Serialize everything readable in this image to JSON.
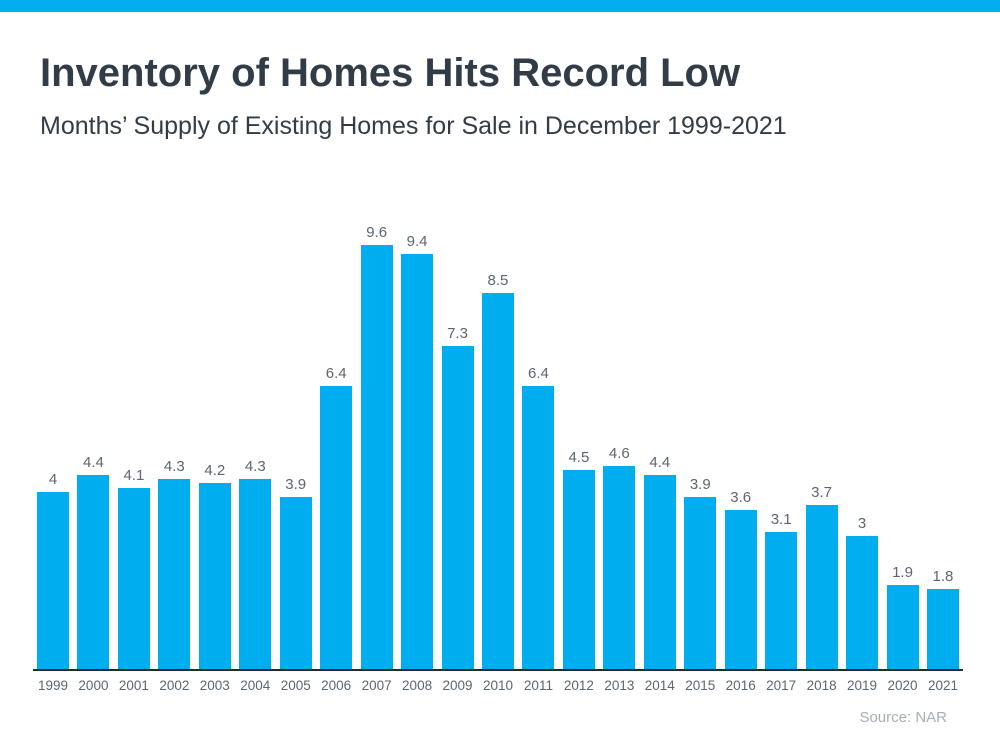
{
  "page": {
    "title": "Inventory of Homes Hits Record Low",
    "subtitle": "Months’ Supply of Existing Homes for Sale in December 1999-2021",
    "source": "Source: NAR"
  },
  "colors": {
    "accent_bar": "#00AEEF",
    "bar": "#00AEEF",
    "title_text": "#323C46",
    "label_text": "#5C6670",
    "axis_line": "#26292E",
    "source_text": "#A6AEB6"
  },
  "chart_data": {
    "type": "bar",
    "title": "Inventory of Homes Hits Record Low",
    "subtitle": "Months’ Supply of Existing Homes for Sale in December 1999-2021",
    "categories": [
      "1999",
      "2000",
      "2001",
      "2002",
      "2003",
      "2004",
      "2005",
      "2006",
      "2007",
      "2008",
      "2009",
      "2010",
      "2011",
      "2012",
      "2013",
      "2014",
      "2015",
      "2016",
      "2017",
      "2018",
      "2019",
      "2020",
      "2021"
    ],
    "values": [
      4,
      4.4,
      4.1,
      4.3,
      4.2,
      4.3,
      3.9,
      6.4,
      9.6,
      9.4,
      7.3,
      8.5,
      6.4,
      4.5,
      4.6,
      4.4,
      3.9,
      3.6,
      3.1,
      3.7,
      3,
      1.9,
      1.8
    ],
    "value_labels_shown": true,
    "xlabel": "",
    "ylabel": "",
    "ylim": [
      0,
      10.4
    ],
    "grid": false,
    "y_axis_shown": false,
    "legend": "none",
    "bar_color": "#00AEEF",
    "source": "Source: NAR"
  }
}
